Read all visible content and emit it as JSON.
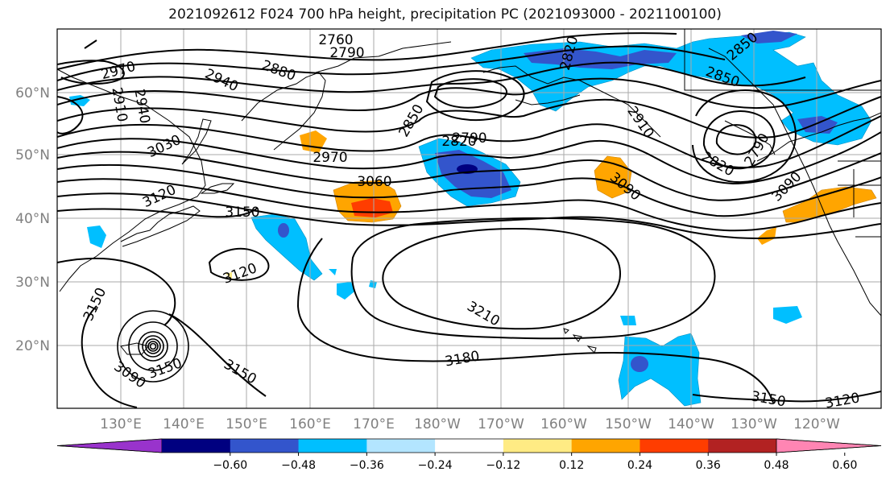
{
  "title": "2021092612 F024 700 hPa height, precipitation PC (2021093000 - 2021100100)",
  "lat_labels": [
    "60°N",
    "50°N",
    "40°N",
    "30°N",
    "20°N"
  ],
  "lon_labels": [
    "130°E",
    "140°E",
    "150°E",
    "160°E",
    "170°E",
    "180°W",
    "170°W",
    "160°W",
    "150°W",
    "140°W",
    "130°W",
    "120°W"
  ],
  "colorbar": {
    "colors": [
      "#9933cc",
      "#000080",
      "#3355cc",
      "#00bfff",
      "#b3e5ff",
      "#ffffff",
      "#ffeb84",
      "#ffa500",
      "#ff3d00",
      "#b22222",
      "#ff85b3"
    ],
    "tick_labels": [
      "−0.60",
      "−0.48",
      "−0.36",
      "−0.24",
      "−0.12",
      "0.12",
      "0.24",
      "0.36",
      "0.48",
      "0.60"
    ]
  },
  "contour_labels": [
    "2760",
    "2790",
    "2820",
    "2850",
    "2850",
    "2970",
    "2940",
    "2880",
    "2910",
    "2940",
    "3030",
    "3120",
    "2850",
    "2790",
    "2820",
    "2910",
    "2820",
    "2790",
    "2970",
    "3060",
    "3090",
    "3150",
    "3120",
    "3150",
    "3210",
    "3180",
    "3150",
    "3120",
    "3090",
    "3150",
    "3150",
    "3090"
  ]
}
